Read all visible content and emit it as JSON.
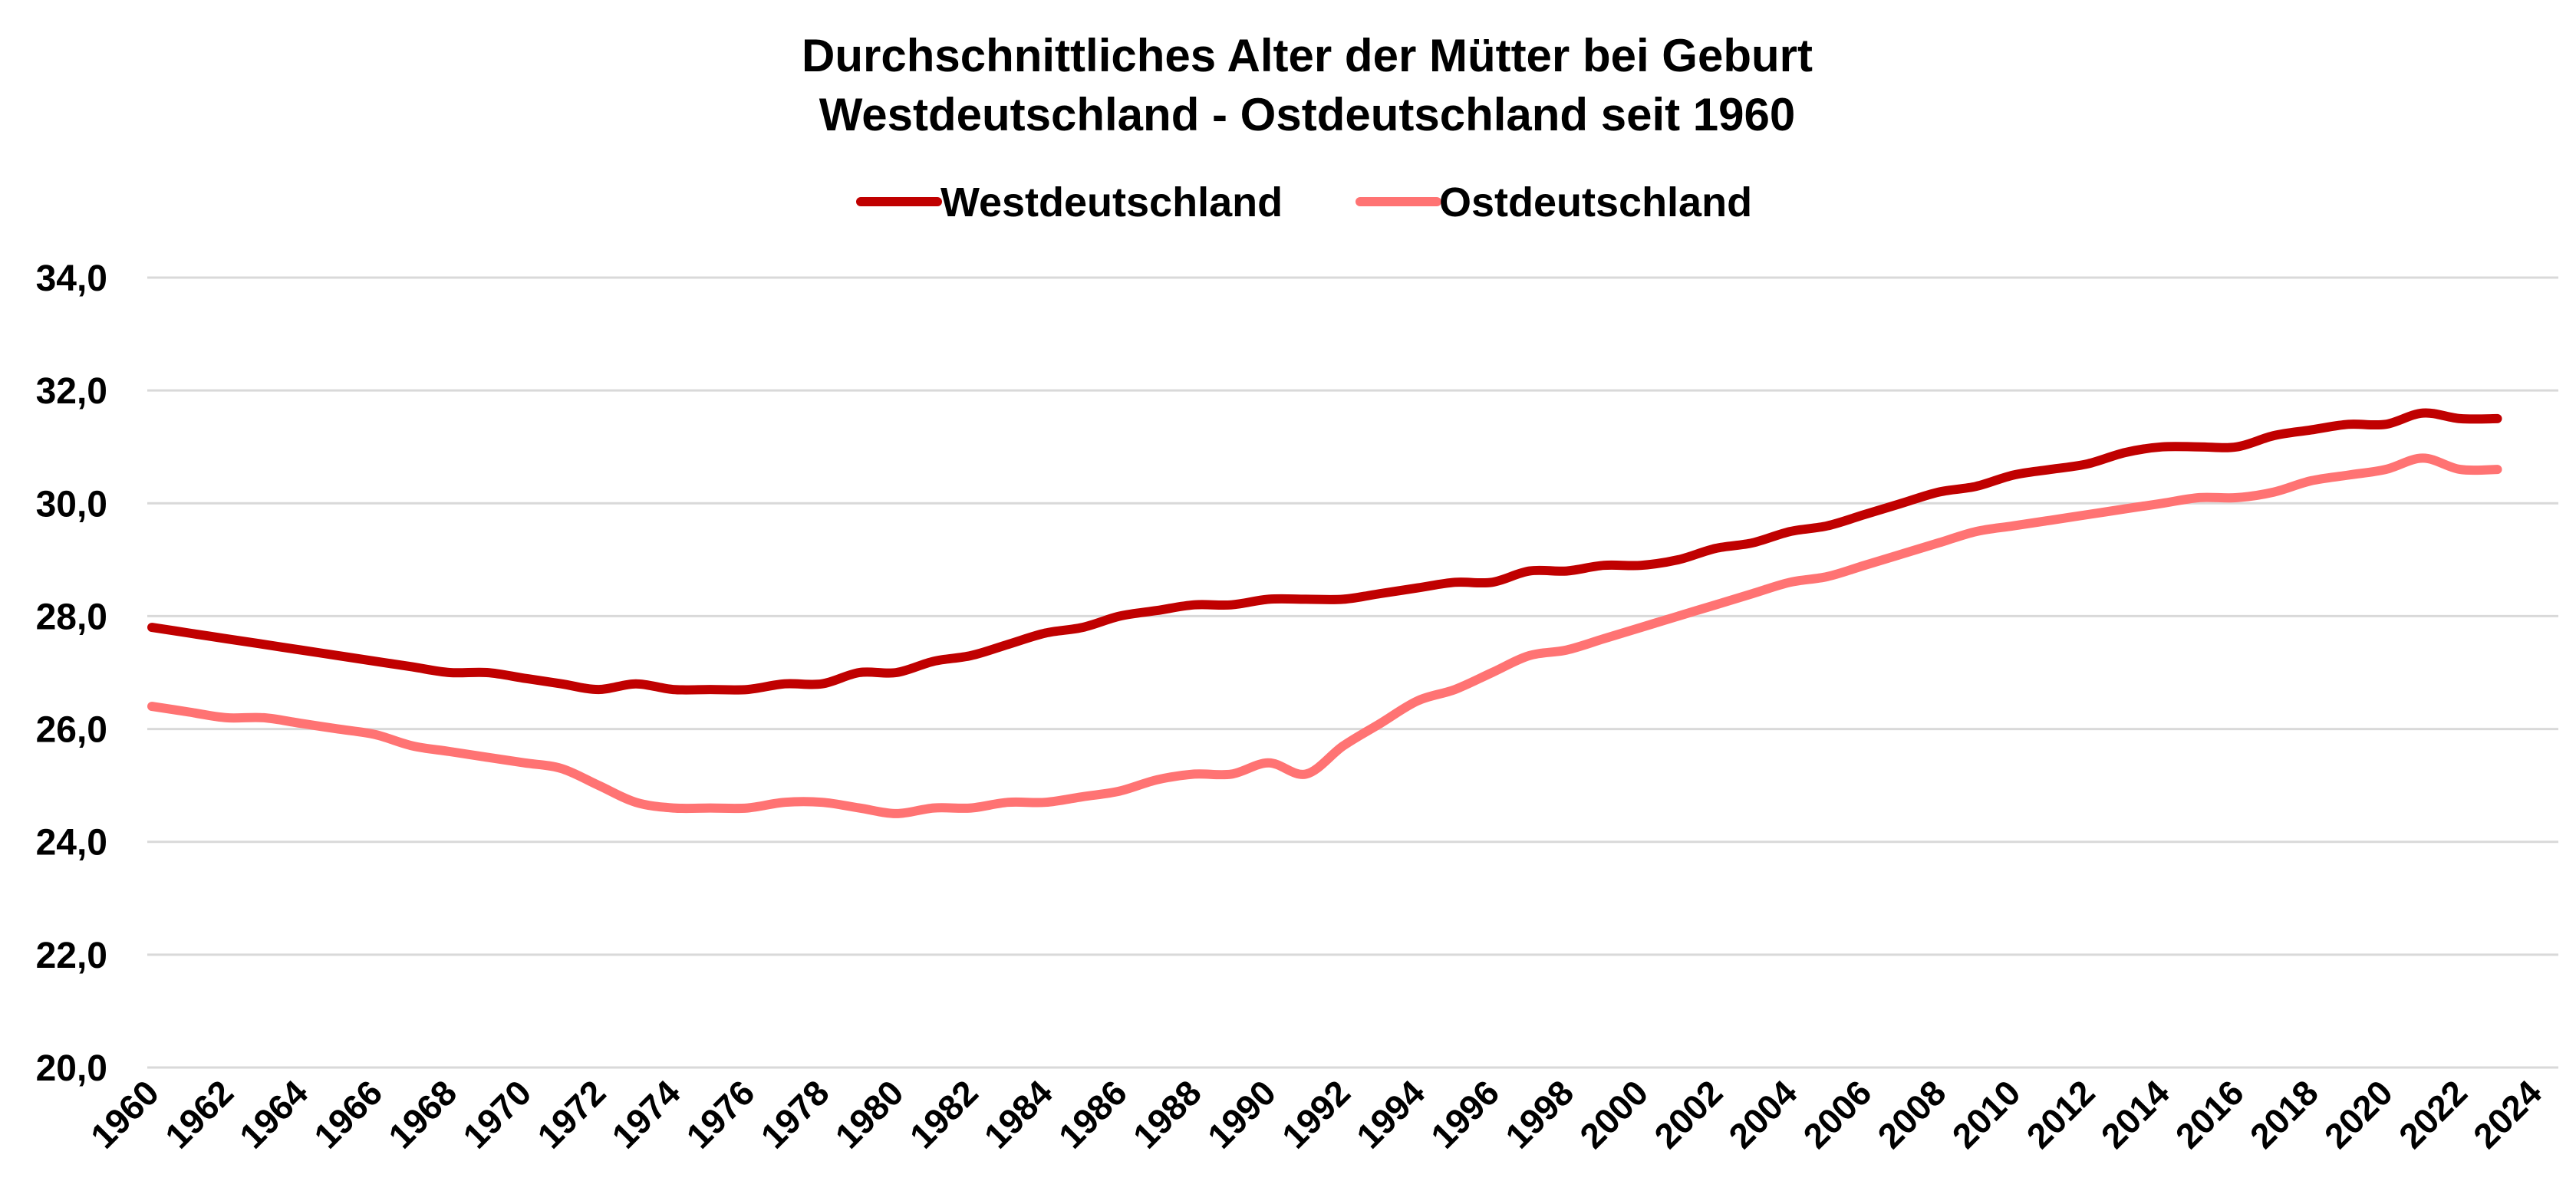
{
  "chart_data": {
    "type": "line",
    "title": "Durchschnittliches Alter der Mütter bei Geburt",
    "subtitle": "Westdeutschland - Ostdeutschland seit 1960",
    "xlabel": "",
    "ylabel": "",
    "ylim": [
      20,
      34
    ],
    "y_ticks": [
      "20,0",
      "22,0",
      "24,0",
      "26,0",
      "28,0",
      "30,0",
      "32,0",
      "34,0"
    ],
    "y_tick_values": [
      20,
      22,
      24,
      26,
      28,
      30,
      32,
      34
    ],
    "x_ticks": [
      "1960",
      "1962",
      "1964",
      "1966",
      "1968",
      "1970",
      "1972",
      "1974",
      "1976",
      "1978",
      "1980",
      "1982",
      "1984",
      "1986",
      "1988",
      "1990",
      "1992",
      "1994",
      "1996",
      "1998",
      "2000",
      "2002",
      "2004",
      "2006",
      "2008",
      "2010",
      "2012",
      "2014",
      "2016",
      "2018",
      "2020",
      "2022",
      "2024"
    ],
    "xlim": [
      1960,
      2024
    ],
    "grid": true,
    "legend_position": "top-center",
    "x": [
      1960,
      1961,
      1962,
      1963,
      1964,
      1965,
      1966,
      1967,
      1968,
      1969,
      1970,
      1971,
      1972,
      1973,
      1974,
      1975,
      1976,
      1977,
      1978,
      1979,
      1980,
      1981,
      1982,
      1983,
      1984,
      1985,
      1986,
      1987,
      1988,
      1989,
      1990,
      1991,
      1992,
      1993,
      1994,
      1995,
      1996,
      1997,
      1998,
      1999,
      2000,
      2001,
      2002,
      2003,
      2004,
      2005,
      2006,
      2007,
      2008,
      2009,
      2010,
      2011,
      2012,
      2013,
      2014,
      2015,
      2016,
      2017,
      2018,
      2019,
      2020,
      2021,
      2022,
      2023
    ],
    "series": [
      {
        "name": "Westdeutschland",
        "color": "#c00000",
        "values": [
          27.8,
          27.7,
          27.6,
          27.5,
          27.4,
          27.3,
          27.2,
          27.1,
          27.0,
          27.0,
          26.9,
          26.8,
          26.7,
          26.8,
          26.7,
          26.7,
          26.7,
          26.8,
          26.8,
          27.0,
          27.0,
          27.2,
          27.3,
          27.5,
          27.7,
          27.8,
          28.0,
          28.1,
          28.2,
          28.2,
          28.3,
          28.3,
          28.3,
          28.4,
          28.5,
          28.6,
          28.6,
          28.8,
          28.8,
          28.9,
          28.9,
          29.0,
          29.2,
          29.3,
          29.5,
          29.6,
          29.8,
          30.0,
          30.2,
          30.3,
          30.5,
          30.6,
          30.7,
          30.9,
          31.0,
          31.0,
          31.0,
          31.2,
          31.3,
          31.4,
          31.4,
          31.6,
          31.5,
          31.5
        ]
      },
      {
        "name": "Ostdeutschland",
        "color": "#ff7373",
        "values": [
          26.4,
          26.3,
          26.2,
          26.2,
          26.1,
          26.0,
          25.9,
          25.7,
          25.6,
          25.5,
          25.4,
          25.3,
          25.0,
          24.7,
          24.6,
          24.6,
          24.6,
          24.7,
          24.7,
          24.6,
          24.5,
          24.6,
          24.6,
          24.7,
          24.7,
          24.8,
          24.9,
          25.1,
          25.2,
          25.2,
          25.4,
          25.2,
          25.7,
          26.1,
          26.5,
          26.7,
          27.0,
          27.3,
          27.4,
          27.6,
          27.8,
          28.0,
          28.2,
          28.4,
          28.6,
          28.7,
          28.9,
          29.1,
          29.3,
          29.5,
          29.6,
          29.7,
          29.8,
          29.9,
          30.0,
          30.1,
          30.1,
          30.2,
          30.4,
          30.5,
          30.6,
          30.8,
          30.6,
          30.6
        ]
      }
    ]
  }
}
